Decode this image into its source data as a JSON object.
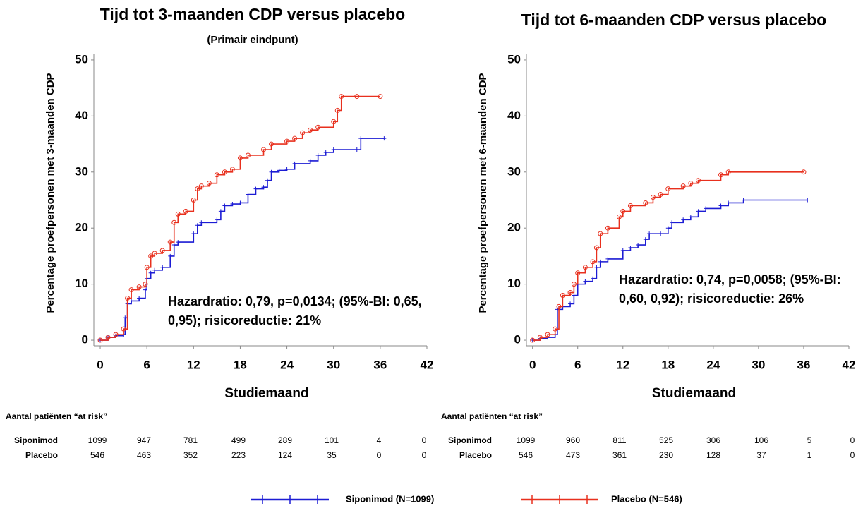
{
  "chart_data": [
    {
      "type": "line",
      "step": true,
      "title": "Tijd tot 3-maanden CDP versus placebo",
      "subtitle": "(Primair eindpunt)",
      "y_label": "Percentage proefpersonen met 3-maanden CDP",
      "x_label": "Studiemaand",
      "annotation": "Hazardratio: 0,79, p=0,0134; (95%-BI: 0,65, 0,95); risicoreductie: 21%",
      "xlim": [
        -1,
        42
      ],
      "xticks": [
        0,
        6,
        12,
        18,
        24,
        30,
        36,
        42
      ],
      "ylim": [
        -1,
        51
      ],
      "yticks": [
        0,
        10,
        20,
        30,
        40,
        50
      ],
      "series": [
        {
          "name": "Siponimod (N=1099)",
          "color": "#1c1cd4",
          "marker": "plus",
          "x": [
            0,
            1,
            2,
            3,
            3.2,
            3.5,
            4,
            5,
            5.8,
            6,
            6.5,
            7,
            8,
            9,
            9.5,
            10,
            12,
            12.5,
            13,
            15,
            15.5,
            16,
            17,
            18,
            19,
            20,
            21,
            21.5,
            22,
            23,
            24,
            25,
            27,
            28,
            29,
            30,
            33,
            33.5,
            36.5
          ],
          "values": [
            0,
            0.5,
            0.8,
            1,
            4,
            6.5,
            7,
            7.5,
            9,
            11,
            12,
            12.5,
            13,
            15,
            17,
            17.5,
            19,
            20.5,
            21,
            21.5,
            23,
            24,
            24.3,
            24.5,
            26,
            27,
            27.3,
            28.5,
            30,
            30.3,
            30.5,
            31.5,
            32,
            33,
            33.5,
            34,
            34,
            36,
            36
          ]
        },
        {
          "name": "Placebo (N=546)",
          "color": "#e8301e",
          "marker": "circle",
          "x": [
            0,
            1,
            2,
            3,
            3.5,
            4,
            5,
            5.8,
            6,
            6.5,
            7,
            8,
            9,
            9.5,
            10,
            11,
            12,
            12.5,
            13,
            14,
            15,
            16,
            17,
            18,
            19,
            21,
            22,
            24,
            25,
            26,
            27,
            28,
            30,
            30.5,
            31,
            33,
            36
          ],
          "values": [
            0,
            0.5,
            1,
            2,
            7.5,
            9,
            9.5,
            10,
            13,
            15,
            15.5,
            16,
            17.5,
            21,
            22.5,
            23,
            25,
            27,
            27.5,
            28,
            29.5,
            30,
            30.5,
            32.5,
            33,
            34,
            35,
            35.5,
            36,
            37,
            37.5,
            38,
            39,
            41,
            43.5,
            43.5,
            43.5
          ]
        }
      ]
    },
    {
      "type": "line",
      "step": true,
      "title": "Tijd tot 6-maanden CDP versus placebo",
      "y_label": "Percentage proefpersonen met 6-maanden CDP",
      "x_label": "Studiemaand",
      "annotation": "Hazardratio: 0,74, p=0,0058; (95%-BI: 0,60, 0,92); risicoreductie: 26%",
      "xlim": [
        -1,
        42
      ],
      "xticks": [
        0,
        6,
        12,
        18,
        24,
        30,
        36,
        42
      ],
      "ylim": [
        -1,
        51
      ],
      "yticks": [
        0,
        10,
        20,
        30,
        40,
        50
      ],
      "series": [
        {
          "color": "#1c1cd4",
          "marker": "plus",
          "x": [
            0,
            1,
            2,
            3,
            3.3,
            4,
            5,
            5.5,
            6,
            7,
            8,
            8.5,
            9,
            10,
            12,
            13,
            14,
            15,
            15.5,
            17,
            18,
            18.5,
            20,
            21,
            22,
            23,
            25,
            26,
            28,
            36.5
          ],
          "values": [
            0,
            0.3,
            0.5,
            1,
            5.5,
            6,
            6.5,
            8,
            10,
            10.5,
            11,
            13,
            14,
            14.5,
            16,
            16.5,
            17,
            18,
            19,
            19,
            20,
            21,
            21.5,
            22,
            23,
            23.5,
            24,
            24.5,
            25,
            25
          ]
        },
        {
          "color": "#e8301e",
          "marker": "circle",
          "x": [
            0,
            1,
            2,
            3,
            3.5,
            4,
            5,
            5.5,
            6,
            7,
            8,
            8.5,
            9,
            10,
            11.5,
            12,
            13,
            15,
            16,
            17,
            18,
            20,
            21,
            22,
            25,
            26,
            36
          ],
          "values": [
            0,
            0.5,
            1,
            2,
            6,
            8,
            8.5,
            10,
            12,
            13,
            14,
            16.5,
            19,
            20,
            22,
            23,
            24,
            24.5,
            25.5,
            26,
            27,
            27.5,
            28,
            28.5,
            29.5,
            30,
            30
          ]
        }
      ]
    }
  ],
  "risk_tables": [
    {
      "title": "Aantal patiënten “at risk”",
      "rows": [
        {
          "label": "Siponimod",
          "counts": [
            1099,
            947,
            781,
            499,
            289,
            101,
            4,
            0
          ]
        },
        {
          "label": "Placebo",
          "counts": [
            546,
            463,
            352,
            223,
            124,
            35,
            0,
            0
          ]
        }
      ]
    },
    {
      "title": "Aantal patiënten “at risk”",
      "rows": [
        {
          "label": "Siponimod",
          "counts": [
            1099,
            960,
            811,
            525,
            306,
            106,
            5,
            0
          ]
        },
        {
          "label": "Placebo",
          "counts": [
            546,
            473,
            361,
            230,
            128,
            37,
            1,
            0
          ]
        }
      ]
    }
  ]
}
